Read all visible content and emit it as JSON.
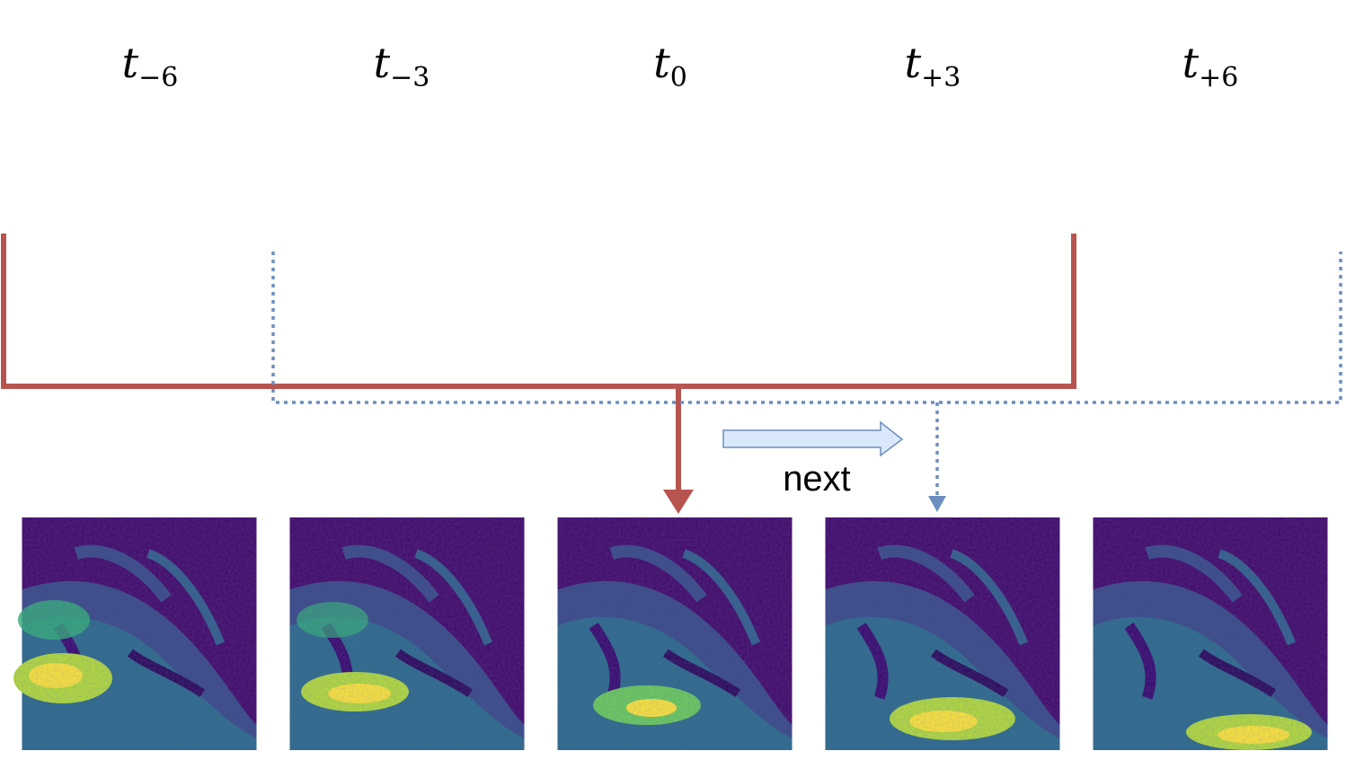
{
  "time_labels": [
    {
      "base": "t",
      "sub": "−6"
    },
    {
      "base": "t",
      "sub": "−3"
    },
    {
      "base": "t",
      "sub": "0"
    },
    {
      "base": "t",
      "sub": "+3"
    },
    {
      "base": "t",
      "sub": "+6"
    }
  ],
  "arrow_label": "next",
  "colors": {
    "solid_connector": "#b85450",
    "dotted_connector": "#6c8ebf",
    "next_arrow_fill": "#dae8fc",
    "next_arrow_stroke": "#6c8ebf",
    "colormap": [
      "#440154",
      "#3b528b",
      "#21918c",
      "#5ec962",
      "#fde725"
    ]
  }
}
